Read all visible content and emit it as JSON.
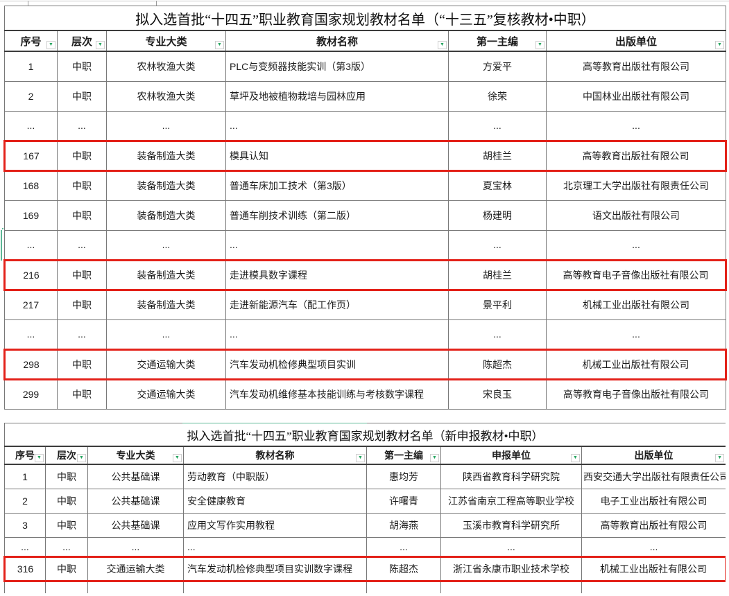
{
  "colors": {
    "highlight_red": "#e32119",
    "filter_green": "#27a560",
    "selection_green": "#5cb796",
    "grid_line": "#787878"
  },
  "icons": {
    "filter_dropdown_icon": "▼"
  },
  "table1": {
    "title": "拟入选首批“十四五”职业教育国家规划教材名单（“十三五”复核教材•中职）",
    "columns": [
      "序号",
      "层次",
      "专业大类",
      "教材名称",
      "第一主编",
      "出版单位"
    ],
    "rows": [
      {
        "cells": [
          "1",
          "中职",
          "农林牧渔大类",
          "PLC与变频器技能实训（第3版）",
          "方爱平",
          "高等教育出版社有限公司"
        ],
        "highlight": false
      },
      {
        "cells": [
          "2",
          "中职",
          "农林牧渔大类",
          "草坪及地被植物栽培与园林应用",
          "徐荣",
          "中国林业出版社有限公司"
        ],
        "highlight": false
      },
      {
        "cells": [
          "...",
          "...",
          "...",
          "...",
          "...",
          "..."
        ],
        "highlight": false
      },
      {
        "cells": [
          "167",
          "中职",
          "装备制造大类",
          "模具认知",
          "胡桂兰",
          "高等教育出版社有限公司"
        ],
        "highlight": true
      },
      {
        "cells": [
          "168",
          "中职",
          "装备制造大类",
          "普通车床加工技术（第3版）",
          "夏宝林",
          "北京理工大学出版社有限责任公司"
        ],
        "highlight": false
      },
      {
        "cells": [
          "169",
          "中职",
          "装备制造大类",
          "普通车削技术训练（第二版）",
          "杨建明",
          "语文出版社有限公司"
        ],
        "highlight": false
      },
      {
        "cells": [
          "...",
          "...",
          "...",
          "...",
          "...",
          "..."
        ],
        "highlight": false
      },
      {
        "cells": [
          "216",
          "中职",
          "装备制造大类",
          "走进模具数字课程",
          "胡桂兰",
          "高等教育电子音像出版社有限公司"
        ],
        "highlight": true
      },
      {
        "cells": [
          "217",
          "中职",
          "装备制造大类",
          "走进新能源汽车（配工作页）",
          "景平利",
          "机械工业出版社有限公司"
        ],
        "highlight": false
      },
      {
        "cells": [
          "...",
          "...",
          "...",
          "...",
          "...",
          "..."
        ],
        "highlight": false
      },
      {
        "cells": [
          "298",
          "中职",
          "交通运输大类",
          "汽车发动机检修典型项目实训",
          "陈超杰",
          "机械工业出版社有限公司"
        ],
        "highlight": true
      },
      {
        "cells": [
          "299",
          "中职",
          "交通运输大类",
          "汽车发动机维修基本技能训练与考核数字课程",
          "宋良玉",
          "高等教育电子音像出版社有限公司"
        ],
        "highlight": false
      }
    ]
  },
  "table2": {
    "title": "拟入选首批“十四五”职业教育国家规划教材名单（新申报教材•中职）",
    "columns": [
      "序号",
      "层次",
      "专业大类",
      "教材名称",
      "第一主编",
      "申报单位",
      "出版单位"
    ],
    "rows": [
      {
        "cells": [
          "1",
          "中职",
          "公共基础课",
          "劳动教育（中职版）",
          "惠均芳",
          "陕西省教育科学研究院",
          "西安交通大学出版社有限责任公司"
        ],
        "highlight": false
      },
      {
        "cells": [
          "2",
          "中职",
          "公共基础课",
          "安全健康教育",
          "许曙青",
          "江苏省南京工程高等职业学校",
          "电子工业出版社有限公司"
        ],
        "highlight": false
      },
      {
        "cells": [
          "3",
          "中职",
          "公共基础课",
          "应用文写作实用教程",
          "胡海燕",
          "玉溪市教育科学研究所",
          "高等教育出版社有限公司"
        ],
        "highlight": false
      },
      {
        "cells": [
          "...",
          "...",
          "...",
          "...",
          "...",
          "...",
          "..."
        ],
        "highlight": false
      },
      {
        "cells": [
          "316",
          "中职",
          "交通运输大类",
          "汽车发动机检修典型项目实训数字课程",
          "陈超杰",
          "浙江省永康市职业技术学校",
          "机械工业出版社有限公司"
        ],
        "highlight": true
      },
      {
        "cells": [
          "",
          "",
          "",
          "",
          "",
          "",
          ""
        ],
        "highlight": false,
        "partial": true
      }
    ]
  }
}
